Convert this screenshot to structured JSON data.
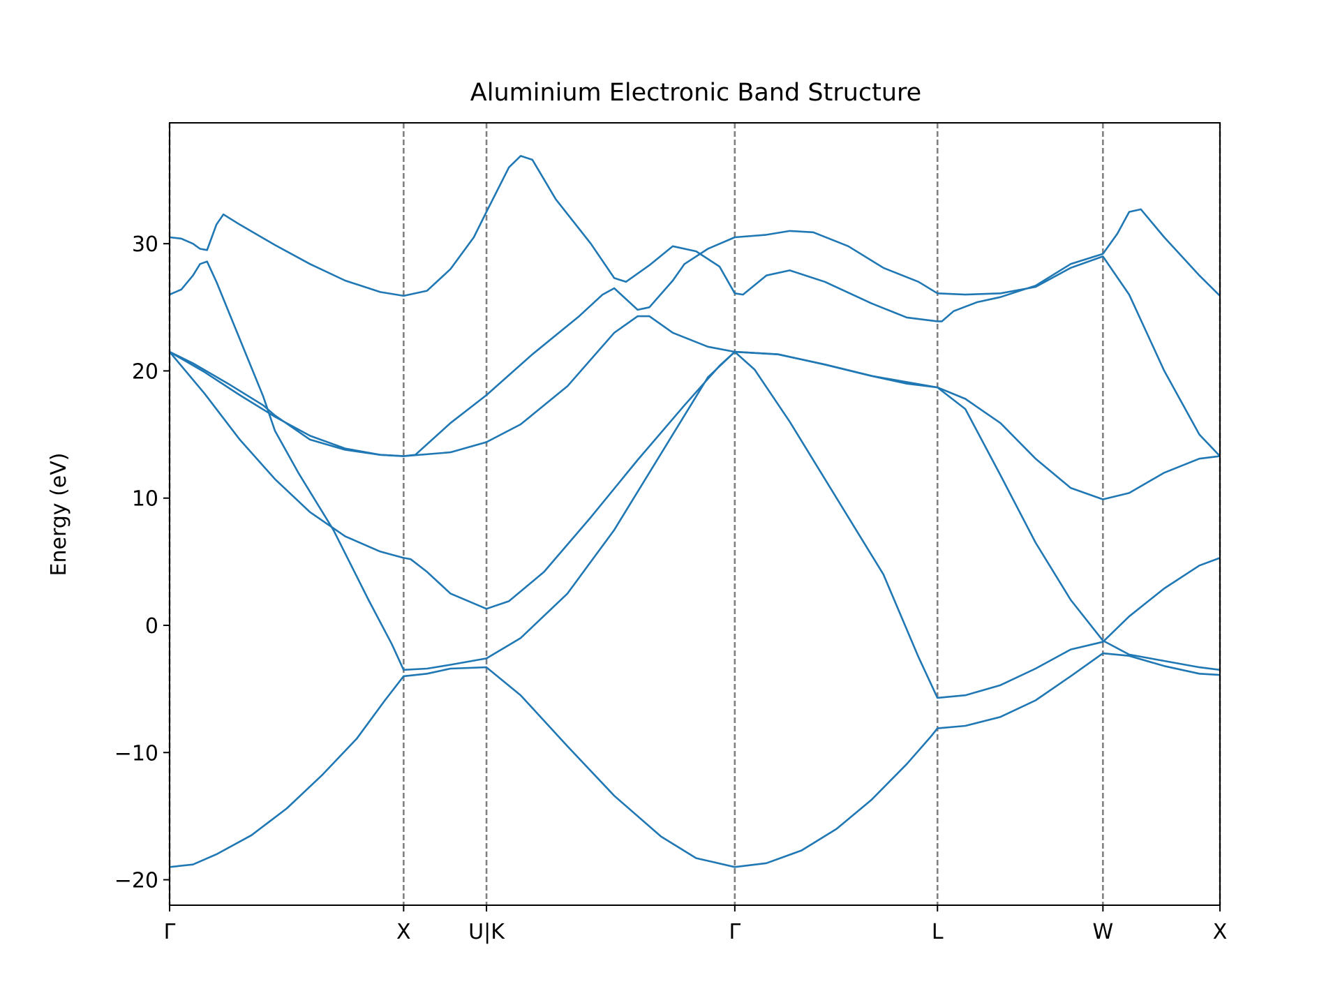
{
  "chart_data": {
    "type": "line",
    "title": "Aluminium Electronic Band Structure",
    "xlabel": "",
    "ylabel": "Energy (eV)",
    "ylim": [
      -22,
      39.5
    ],
    "y_ticks": [
      -20,
      -10,
      0,
      10,
      20,
      30
    ],
    "y_tick_labels": [
      "−20",
      "−10",
      "0",
      "10",
      "20",
      "30"
    ],
    "grid": false,
    "legend": "none",
    "line_color": "#1f77b4",
    "divider_color": "#808080",
    "k_points": [
      {
        "label": "Γ",
        "x": 0.0
      },
      {
        "label": "X",
        "x": 1.0
      },
      {
        "label": "U|K",
        "x": 1.354
      },
      {
        "label": "Γ",
        "x": 2.415
      },
      {
        "label": "L",
        "x": 3.281
      },
      {
        "label": "W",
        "x": 3.988
      },
      {
        "label": "X",
        "x": 4.488
      }
    ],
    "xlim": [
      0,
      4.488
    ],
    "series": [
      {
        "values": [
          [
            0,
            -19.0
          ],
          [
            0.1,
            -18.8
          ],
          [
            0.2,
            -18.0
          ],
          [
            0.35,
            -16.5
          ],
          [
            0.5,
            -14.4
          ],
          [
            0.65,
            -11.8
          ],
          [
            0.8,
            -8.9
          ],
          [
            0.92,
            -5.9
          ],
          [
            1.0,
            -4.0
          ],
          [
            1.1,
            -3.8
          ],
          [
            1.2,
            -3.4
          ],
          [
            1.354,
            -3.3
          ],
          [
            1.5,
            -5.5
          ],
          [
            1.7,
            -9.5
          ],
          [
            1.9,
            -13.4
          ],
          [
            2.1,
            -16.6
          ],
          [
            2.25,
            -18.3
          ],
          [
            2.415,
            -19.0
          ],
          [
            2.55,
            -18.7
          ],
          [
            2.7,
            -17.7
          ],
          [
            2.85,
            -16.0
          ],
          [
            3.0,
            -13.7
          ],
          [
            3.15,
            -10.9
          ],
          [
            3.25,
            -8.8
          ],
          [
            3.281,
            -8.1
          ],
          [
            3.4,
            -7.9
          ],
          [
            3.55,
            -7.2
          ],
          [
            3.7,
            -5.9
          ],
          [
            3.85,
            -4.0
          ],
          [
            3.988,
            -2.2
          ],
          [
            4.1,
            -2.4
          ],
          [
            4.25,
            -3.2
          ],
          [
            4.4,
            -3.8
          ],
          [
            4.488,
            -3.9
          ]
        ]
      },
      {
        "values": [
          [
            0,
            21.5
          ],
          [
            0.15,
            18.2
          ],
          [
            0.3,
            14.6
          ],
          [
            0.45,
            11.5
          ],
          [
            0.6,
            8.9
          ],
          [
            0.75,
            7.0
          ],
          [
            0.9,
            5.8
          ],
          [
            1.0,
            5.3
          ],
          [
            1.03,
            5.2
          ],
          [
            1.1,
            4.2
          ],
          [
            1.2,
            2.5
          ],
          [
            1.354,
            1.3
          ],
          [
            1.45,
            1.9
          ],
          [
            1.6,
            4.2
          ],
          [
            1.8,
            8.5
          ],
          [
            2.0,
            13.0
          ],
          [
            2.2,
            17.3
          ],
          [
            2.35,
            20.4
          ],
          [
            2.415,
            21.5
          ],
          [
            2.5,
            20.1
          ],
          [
            2.65,
            16.0
          ],
          [
            2.85,
            10.0
          ],
          [
            3.05,
            4.0
          ],
          [
            3.2,
            -2.5
          ],
          [
            3.281,
            -5.7
          ],
          [
            3.4,
            -5.5
          ],
          [
            3.55,
            -4.7
          ],
          [
            3.7,
            -3.4
          ],
          [
            3.85,
            -1.9
          ],
          [
            3.988,
            -1.3
          ],
          [
            4.1,
            0.7
          ],
          [
            4.25,
            2.9
          ],
          [
            4.4,
            4.7
          ],
          [
            4.488,
            5.3
          ]
        ]
      },
      {
        "values": [
          [
            0,
            21.5
          ],
          [
            0.15,
            19.9
          ],
          [
            0.3,
            18.1
          ],
          [
            0.45,
            16.4
          ],
          [
            0.6,
            14.9
          ],
          [
            0.75,
            13.9
          ],
          [
            0.9,
            13.4
          ],
          [
            1.0,
            13.3
          ],
          [
            1.2,
            13.6
          ],
          [
            1.354,
            14.4
          ],
          [
            1.5,
            15.8
          ],
          [
            1.7,
            18.8
          ],
          [
            1.9,
            23.0
          ],
          [
            2.0,
            24.3
          ],
          [
            2.05,
            24.3
          ],
          [
            2.15,
            23.0
          ],
          [
            2.3,
            21.9
          ],
          [
            2.415,
            21.5
          ],
          [
            2.6,
            21.3
          ],
          [
            2.8,
            20.5
          ],
          [
            3.0,
            19.6
          ],
          [
            3.15,
            19.0
          ],
          [
            3.281,
            18.7
          ],
          [
            3.4,
            17.8
          ],
          [
            3.55,
            15.9
          ],
          [
            3.7,
            13.1
          ],
          [
            3.85,
            10.8
          ],
          [
            3.988,
            9.9
          ],
          [
            4.1,
            10.4
          ],
          [
            4.25,
            12.0
          ],
          [
            4.4,
            13.1
          ],
          [
            4.488,
            13.3
          ]
        ]
      },
      {
        "values": [
          [
            0,
            26.0
          ],
          [
            0.05,
            26.4
          ],
          [
            0.1,
            27.5
          ],
          [
            0.13,
            28.4
          ],
          [
            0.16,
            28.6
          ],
          [
            0.2,
            27.0
          ],
          [
            0.3,
            22.5
          ],
          [
            0.4,
            18.0
          ],
          [
            0.45,
            15.3
          ],
          [
            0.55,
            12.0
          ],
          [
            0.7,
            7.5
          ],
          [
            0.85,
            2.0
          ],
          [
            0.95,
            -1.5
          ],
          [
            1.0,
            -3.5
          ],
          [
            1.1,
            -3.4
          ],
          [
            1.2,
            -3.1
          ],
          [
            1.354,
            -2.6
          ],
          [
            1.5,
            -1.0
          ],
          [
            1.7,
            2.5
          ],
          [
            1.9,
            7.5
          ],
          [
            2.1,
            13.5
          ],
          [
            2.3,
            19.5
          ],
          [
            2.415,
            21.5
          ],
          [
            2.6,
            21.3
          ],
          [
            2.8,
            20.5
          ],
          [
            3.0,
            19.6
          ],
          [
            3.281,
            18.7
          ],
          [
            3.4,
            17.0
          ],
          [
            3.55,
            11.8
          ],
          [
            3.7,
            6.5
          ],
          [
            3.85,
            2.0
          ],
          [
            3.988,
            -1.2
          ],
          [
            4.1,
            -2.3
          ],
          [
            4.25,
            -2.8
          ],
          [
            4.4,
            -3.3
          ],
          [
            4.488,
            -3.5
          ]
        ]
      },
      {
        "values": [
          [
            0,
            21.5
          ],
          [
            0.1,
            20.6
          ],
          [
            0.25,
            19.0
          ],
          [
            0.4,
            17.3
          ],
          [
            0.45,
            16.5
          ],
          [
            0.6,
            14.6
          ],
          [
            0.75,
            13.8
          ],
          [
            0.9,
            13.4
          ],
          [
            1.0,
            13.3
          ],
          [
            1.05,
            13.4
          ],
          [
            1.2,
            15.9
          ],
          [
            1.354,
            18.1
          ],
          [
            1.55,
            21.3
          ],
          [
            1.75,
            24.3
          ],
          [
            1.85,
            26.0
          ],
          [
            1.9,
            26.5
          ],
          [
            2.0,
            24.8
          ],
          [
            2.05,
            25.0
          ],
          [
            2.15,
            27.1
          ],
          [
            2.2,
            28.4
          ],
          [
            2.3,
            29.6
          ],
          [
            2.415,
            30.5
          ],
          [
            2.55,
            30.7
          ],
          [
            2.65,
            31.0
          ],
          [
            2.75,
            30.9
          ],
          [
            2.9,
            29.8
          ],
          [
            3.05,
            28.1
          ],
          [
            3.2,
            27.0
          ],
          [
            3.281,
            26.1
          ],
          [
            3.4,
            26.0
          ],
          [
            3.55,
            26.1
          ],
          [
            3.7,
            26.6
          ],
          [
            3.85,
            28.1
          ],
          [
            3.988,
            29.0
          ],
          [
            4.1,
            26.0
          ],
          [
            4.25,
            20.0
          ],
          [
            4.4,
            15.0
          ],
          [
            4.488,
            13.3
          ]
        ]
      },
      {
        "values": [
          [
            0,
            30.5
          ],
          [
            0.05,
            30.4
          ],
          [
            0.1,
            30.0
          ],
          [
            0.13,
            29.6
          ],
          [
            0.16,
            29.5
          ],
          [
            0.2,
            31.5
          ],
          [
            0.23,
            32.3
          ],
          [
            0.3,
            31.5
          ],
          [
            0.45,
            29.9
          ],
          [
            0.6,
            28.4
          ],
          [
            0.75,
            27.1
          ],
          [
            0.9,
            26.2
          ],
          [
            1.0,
            25.9
          ],
          [
            1.1,
            26.3
          ],
          [
            1.2,
            28.0
          ],
          [
            1.3,
            30.5
          ],
          [
            1.354,
            32.5
          ],
          [
            1.45,
            36.0
          ],
          [
            1.5,
            36.9
          ],
          [
            1.55,
            36.6
          ],
          [
            1.65,
            33.5
          ],
          [
            1.8,
            30.0
          ],
          [
            1.9,
            27.3
          ],
          [
            1.95,
            27.0
          ],
          [
            2.05,
            28.3
          ],
          [
            2.15,
            29.8
          ],
          [
            2.25,
            29.4
          ],
          [
            2.35,
            28.2
          ],
          [
            2.415,
            26.1
          ],
          [
            2.45,
            26.0
          ],
          [
            2.55,
            27.5
          ],
          [
            2.65,
            27.9
          ],
          [
            2.8,
            27.0
          ],
          [
            3.0,
            25.3
          ],
          [
            3.15,
            24.2
          ],
          [
            3.281,
            23.9
          ],
          [
            3.3,
            23.9
          ],
          [
            3.35,
            24.7
          ],
          [
            3.45,
            25.4
          ],
          [
            3.55,
            25.8
          ],
          [
            3.7,
            26.7
          ],
          [
            3.85,
            28.4
          ],
          [
            3.988,
            29.2
          ],
          [
            4.05,
            30.8
          ],
          [
            4.1,
            32.5
          ],
          [
            4.15,
            32.7
          ],
          [
            4.25,
            30.5
          ],
          [
            4.4,
            27.5
          ],
          [
            4.488,
            25.9
          ]
        ]
      }
    ]
  }
}
